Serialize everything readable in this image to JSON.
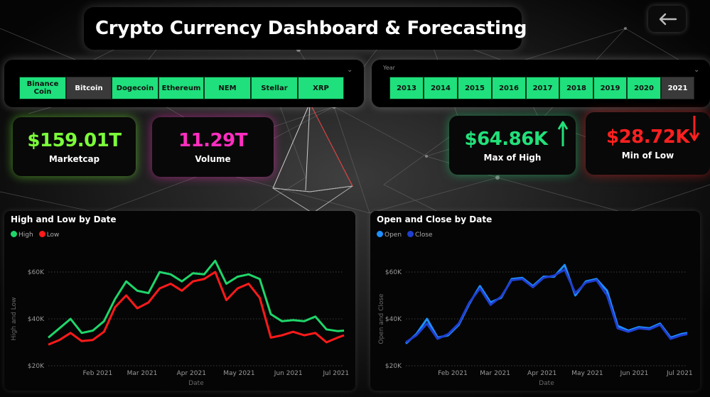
{
  "header": {
    "title": "Crypto Currency Dashboard & Forecasting",
    "back_icon": "arrow-left-icon"
  },
  "coin_slicer": {
    "items": [
      "Binance Coin",
      "Bitcoin",
      "Dogecoin",
      "Ethereum",
      "NEM",
      "Stellar",
      "XRP"
    ],
    "selected": "Bitcoin"
  },
  "year_slicer": {
    "title": "Year",
    "items": [
      "2013",
      "2014",
      "2015",
      "2016",
      "2017",
      "2018",
      "2019",
      "2020",
      "2021"
    ],
    "selected": "2021"
  },
  "kpis": {
    "marketcap": {
      "value": "$159.01T",
      "label": "Marketcap",
      "color": "#7cff3a"
    },
    "volume": {
      "value": "11.29T",
      "label": "Volume",
      "color": "#ff2ec0"
    },
    "max_high": {
      "value": "$64.86K",
      "label": "Max of High",
      "color": "#22e07a",
      "icon": "arrow-up-icon"
    },
    "min_low": {
      "value": "$28.72K",
      "label": "Min of Low",
      "color": "#ff2020",
      "icon": "arrow-down-icon"
    }
  },
  "colors": {
    "high": "#1fd66a",
    "low": "#ff1a1a",
    "open": "#1e90ff",
    "close": "#1f3fcf",
    "accent": "#1fe07c"
  },
  "chart_data": [
    {
      "type": "line",
      "title": "High and Low by Date",
      "xlabel": "Date",
      "ylabel": "High and Low",
      "x_ticks": [
        "Feb 2021",
        "Mar 2021",
        "Apr 2021",
        "May 2021",
        "Jun 2021",
        "Jul 2021"
      ],
      "y_ticks": [
        "$20K",
        "$40K",
        "$60K"
      ],
      "ylim": [
        20000,
        65000
      ],
      "x": [
        "2021-01-01",
        "2021-01-08",
        "2021-01-15",
        "2021-01-22",
        "2021-01-29",
        "2021-02-05",
        "2021-02-12",
        "2021-02-19",
        "2021-02-26",
        "2021-03-05",
        "2021-03-12",
        "2021-03-19",
        "2021-03-26",
        "2021-04-02",
        "2021-04-09",
        "2021-04-16",
        "2021-04-23",
        "2021-04-30",
        "2021-05-07",
        "2021-05-14",
        "2021-05-21",
        "2021-05-28",
        "2021-06-04",
        "2021-06-11",
        "2021-06-18",
        "2021-06-25",
        "2021-07-02",
        "2021-07-06"
      ],
      "series": [
        {
          "name": "High",
          "values": [
            32000,
            36000,
            40000,
            34000,
            35000,
            39000,
            48500,
            56000,
            52000,
            51000,
            60000,
            59000,
            56000,
            59500,
            59000,
            64800,
            55000,
            58000,
            59000,
            57000,
            42000,
            39000,
            39500,
            39000,
            41000,
            35500,
            34800,
            35000
          ]
        },
        {
          "name": "Low",
          "values": [
            29000,
            31000,
            34000,
            30500,
            31000,
            34500,
            45000,
            50000,
            44500,
            47000,
            53000,
            55000,
            52000,
            56000,
            57000,
            60000,
            48000,
            53000,
            55000,
            49000,
            32000,
            33000,
            34500,
            33000,
            34000,
            30000,
            32000,
            33000
          ]
        }
      ],
      "legend": "top-left",
      "grid": true
    },
    {
      "type": "line",
      "title": "Open and Close by Date",
      "xlabel": "Date",
      "ylabel": "Open and Close",
      "x_ticks": [
        "Feb 2021",
        "Mar 2021",
        "Apr 2021",
        "May 2021",
        "Jun 2021",
        "Jul 2021"
      ],
      "y_ticks": [
        "$20K",
        "$40K",
        "$60K"
      ],
      "ylim": [
        20000,
        65000
      ],
      "x": [
        "2021-01-01",
        "2021-01-08",
        "2021-01-15",
        "2021-01-22",
        "2021-01-29",
        "2021-02-05",
        "2021-02-12",
        "2021-02-19",
        "2021-02-26",
        "2021-03-05",
        "2021-03-12",
        "2021-03-19",
        "2021-03-26",
        "2021-04-02",
        "2021-04-09",
        "2021-04-16",
        "2021-04-23",
        "2021-04-30",
        "2021-05-07",
        "2021-05-14",
        "2021-05-21",
        "2021-05-28",
        "2021-06-04",
        "2021-06-11",
        "2021-06-18",
        "2021-06-25",
        "2021-07-02",
        "2021-07-06"
      ],
      "series": [
        {
          "name": "Open",
          "values": [
            29500,
            33500,
            40000,
            32000,
            33000,
            37500,
            46500,
            54000,
            47000,
            49000,
            57000,
            57500,
            54000,
            58000,
            58000,
            63000,
            50000,
            56000,
            57000,
            52000,
            37000,
            35000,
            36500,
            36000,
            38000,
            32000,
            33500,
            34000
          ]
        },
        {
          "name": "Close",
          "values": [
            30000,
            33000,
            38000,
            31500,
            33500,
            38000,
            47000,
            53000,
            46000,
            49500,
            56500,
            57000,
            53500,
            57500,
            58500,
            61000,
            51000,
            55500,
            56500,
            50000,
            36000,
            34500,
            36000,
            35500,
            37500,
            31500,
            33000,
            33500
          ]
        }
      ],
      "legend": "top-left",
      "grid": true
    }
  ]
}
